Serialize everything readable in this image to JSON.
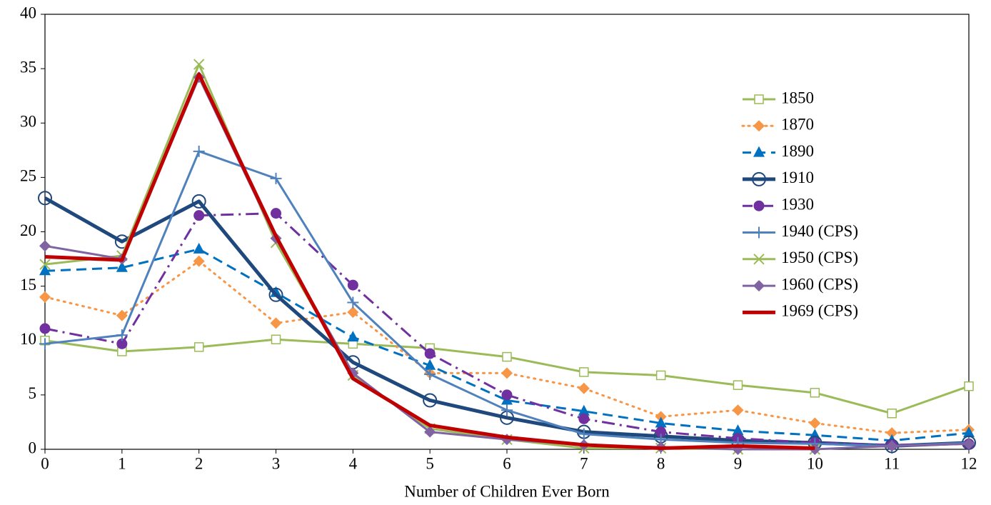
{
  "chart_data": {
    "type": "line",
    "x_label": "Number of Children Ever Born",
    "x": [
      0,
      1,
      2,
      3,
      4,
      5,
      6,
      7,
      8,
      9,
      10,
      11,
      12
    ],
    "xlim": [
      0,
      12
    ],
    "xticks": [
      0,
      1,
      2,
      3,
      4,
      5,
      6,
      7,
      8,
      9,
      10,
      11,
      12
    ],
    "ylim": [
      0,
      40
    ],
    "yticks": [
      0,
      5,
      10,
      15,
      20,
      25,
      30,
      35,
      40
    ],
    "grid": false,
    "legend": "right",
    "series": [
      {
        "name": "1850",
        "color": "#9bbb59",
        "marker": "square-open",
        "line_style": "solid",
        "line_width": 3,
        "values": [
          10.0,
          9.0,
          9.4,
          10.1,
          9.7,
          9.3,
          8.5,
          7.1,
          6.8,
          5.9,
          5.2,
          3.3,
          5.8
        ]
      },
      {
        "name": "1870",
        "color": "#f79646",
        "marker": "diamond",
        "line_style": "dotted",
        "line_width": 3,
        "values": [
          14.0,
          12.3,
          17.3,
          11.6,
          12.6,
          7.0,
          7.0,
          5.6,
          3.0,
          3.6,
          2.4,
          1.5,
          1.8
        ]
      },
      {
        "name": "1890",
        "color": "#0070c0",
        "marker": "triangle",
        "line_style": "dashed",
        "line_width": 3,
        "values": [
          16.4,
          16.7,
          18.4,
          14.4,
          10.3,
          7.7,
          4.5,
          3.5,
          2.4,
          1.7,
          1.3,
          0.8,
          1.5
        ]
      },
      {
        "name": "1910",
        "color": "#1f497d",
        "marker": "circle-open",
        "line_style": "solid",
        "line_width": 5,
        "values": [
          23.1,
          19.1,
          22.8,
          14.2,
          8.0,
          4.5,
          2.9,
          1.6,
          1.2,
          0.8,
          0.6,
          0.3,
          0.6
        ]
      },
      {
        "name": "1930",
        "color": "#7030a0",
        "marker": "circle",
        "line_style": "dash-dot",
        "line_width": 3,
        "values": [
          11.1,
          9.7,
          21.5,
          21.7,
          15.1,
          8.8,
          5.0,
          2.8,
          1.6,
          1.0,
          0.6,
          0.4,
          0.5
        ]
      },
      {
        "name": "1940 (CPS)",
        "color": "#4f81bd",
        "marker": "plus",
        "line_style": "solid",
        "line_width": 3,
        "values": [
          9.7,
          10.5,
          27.4,
          24.9,
          13.5,
          6.9,
          3.6,
          1.4,
          0.9,
          0.6,
          0.5,
          0.3,
          0.6
        ]
      },
      {
        "name": "1950 (CPS)",
        "color": "#9bbb59",
        "marker": "x",
        "line_style": "solid",
        "line_width": 3,
        "values": [
          17.0,
          17.8,
          35.4,
          19.0,
          6.8,
          1.9,
          0.9,
          0.1,
          0.1,
          0.0,
          0.0,
          null,
          null
        ]
      },
      {
        "name": "1960 (CPS)",
        "color": "#8064a2",
        "marker": "diamond",
        "line_style": "solid",
        "line_width": 3,
        "values": [
          18.7,
          17.5,
          34.2,
          19.4,
          7.0,
          1.6,
          0.9,
          0.4,
          0.2,
          0.0,
          0.0,
          0.3,
          0.5
        ]
      },
      {
        "name": "1969 (CPS)",
        "color": "#c00000",
        "marker": "none",
        "line_style": "solid",
        "line_width": 5,
        "values": [
          17.7,
          17.4,
          34.5,
          19.6,
          6.5,
          2.2,
          1.1,
          0.4,
          0.1,
          0.3,
          0.1,
          null,
          null
        ]
      }
    ]
  }
}
